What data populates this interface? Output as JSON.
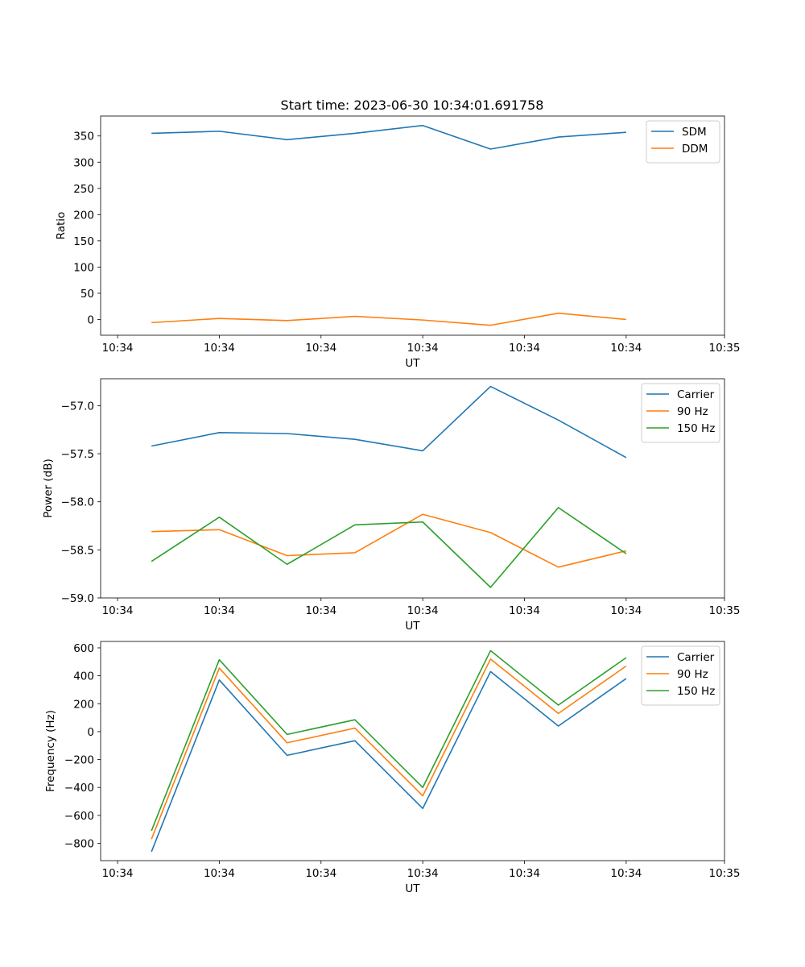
{
  "chart_data": {
    "title": "Start time: 2023-06-30 10:34:01.691758",
    "x_tick_labels": [
      "10:34",
      "10:34",
      "10:34",
      "10:34",
      "10:34",
      "10:34",
      "10:34"
    ],
    "x_tick_labels_end": "10:35",
    "colors": {
      "blue": "#1f77b4",
      "orange": "#ff7f0e",
      "green": "#2ca02c"
    },
    "panels": [
      {
        "type": "line",
        "xlabel": "UT",
        "ylabel": "Ratio",
        "ylim": [
          -30,
          388
        ],
        "yticks": [
          0,
          50,
          100,
          150,
          200,
          250,
          300,
          350
        ],
        "legend_position": "top-right",
        "series": [
          {
            "name": "SDM",
            "color": "#1f77b4",
            "values": [
              355,
              359,
              343,
              355,
              370,
              325,
              348,
              357
            ]
          },
          {
            "name": "DDM",
            "color": "#ff7f0e",
            "values": [
              -6,
              2,
              -2,
              6,
              -1,
              -11,
              12,
              0
            ]
          }
        ]
      },
      {
        "type": "line",
        "xlabel": "UT",
        "ylabel": "Power (dB)",
        "ylim": [
          -59.0,
          -56.72
        ],
        "yticks": [
          -59.0,
          -58.5,
          -58.0,
          -57.5,
          -57.0
        ],
        "legend_position": "top-right",
        "series": [
          {
            "name": "Carrier",
            "color": "#1f77b4",
            "values": [
              -57.42,
              -57.28,
              -57.29,
              -57.35,
              -57.47,
              -56.8,
              -57.15,
              -57.54
            ]
          },
          {
            "name": "90 Hz",
            "color": "#ff7f0e",
            "values": [
              -58.31,
              -58.29,
              -58.56,
              -58.53,
              -58.13,
              -58.32,
              -58.68,
              -58.51
            ]
          },
          {
            "name": "150 Hz",
            "color": "#2ca02c",
            "values": [
              -58.62,
              -58.16,
              -58.65,
              -58.24,
              -58.21,
              -58.89,
              -58.06,
              -58.54
            ]
          }
        ]
      },
      {
        "type": "line",
        "xlabel": "UT",
        "ylabel": "Frequency (Hz)",
        "ylim": [
          -924,
          646
        ],
        "yticks": [
          -800,
          -600,
          -400,
          -200,
          0,
          200,
          400,
          600
        ],
        "legend_position": "top-right",
        "series": [
          {
            "name": "Carrier",
            "color": "#1f77b4",
            "values": [
              -860,
              370,
              -170,
              -65,
              -550,
              430,
              40,
              380
            ]
          },
          {
            "name": "90 Hz",
            "color": "#ff7f0e",
            "values": [
              -770,
              455,
              -80,
              25,
              -460,
              520,
              130,
              470
            ]
          },
          {
            "name": "150 Hz",
            "color": "#2ca02c",
            "values": [
              -710,
              515,
              -20,
              85,
              -400,
              580,
              190,
              530
            ]
          }
        ]
      }
    ]
  }
}
